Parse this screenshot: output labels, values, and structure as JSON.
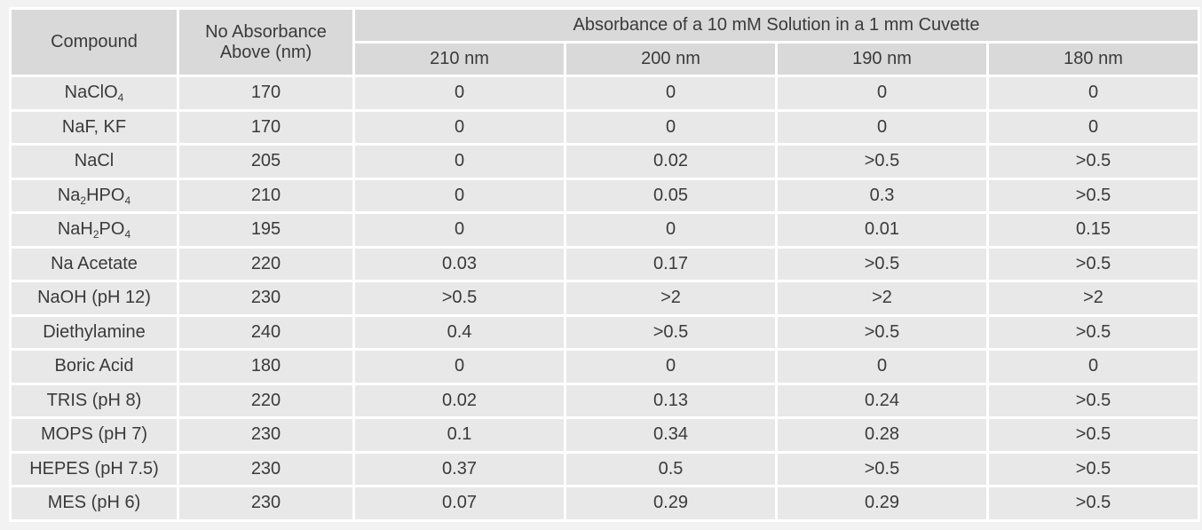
{
  "table": {
    "header": {
      "compound": "Compound",
      "no_absorbance": "No Absorbance Above (nm)",
      "group": "Absorbance of a 10 mM Solution in a 1 mm Cuvette",
      "wavelengths": [
        "210 nm",
        "200 nm",
        "190 nm",
        "180 nm"
      ]
    },
    "rows": [
      [
        [
          "NaClO",
          "4"
        ],
        "170",
        "0",
        "0",
        "0",
        "0"
      ],
      [
        [
          "NaF, KF"
        ],
        "170",
        "0",
        "0",
        "0",
        "0"
      ],
      [
        [
          "NaCl"
        ],
        "205",
        "0",
        "0.02",
        ">0.5",
        ">0.5"
      ],
      [
        [
          "Na",
          "2",
          "HPO",
          "4"
        ],
        "210",
        "0",
        "0.05",
        "0.3",
        ">0.5"
      ],
      [
        [
          "NaH",
          "2",
          "PO",
          "4"
        ],
        "195",
        "0",
        "0",
        "0.01",
        "0.15"
      ],
      [
        [
          "Na Acetate"
        ],
        "220",
        "0.03",
        "0.17",
        ">0.5",
        ">0.5"
      ],
      [
        [
          "NaOH (pH 12)"
        ],
        "230",
        ">0.5",
        ">2",
        ">2",
        ">2"
      ],
      [
        [
          "Diethylamine"
        ],
        "240",
        "0.4",
        ">0.5",
        ">0.5",
        ">0.5"
      ],
      [
        [
          "Boric Acid"
        ],
        "180",
        "0",
        "0",
        "0",
        "0"
      ],
      [
        [
          "TRIS (pH 8)"
        ],
        "220",
        "0.02",
        "0.13",
        "0.24",
        ">0.5"
      ],
      [
        [
          "MOPS (pH 7)"
        ],
        "230",
        "0.1",
        "0.34",
        "0.28",
        ">0.5"
      ],
      [
        [
          "HEPES (pH 7.5)"
        ],
        "230",
        "0.37",
        "0.5",
        ">0.5",
        ">0.5"
      ],
      [
        [
          "MES (pH 6)"
        ],
        "230",
        "0.07",
        "0.29",
        "0.29",
        ">0.5"
      ]
    ]
  }
}
